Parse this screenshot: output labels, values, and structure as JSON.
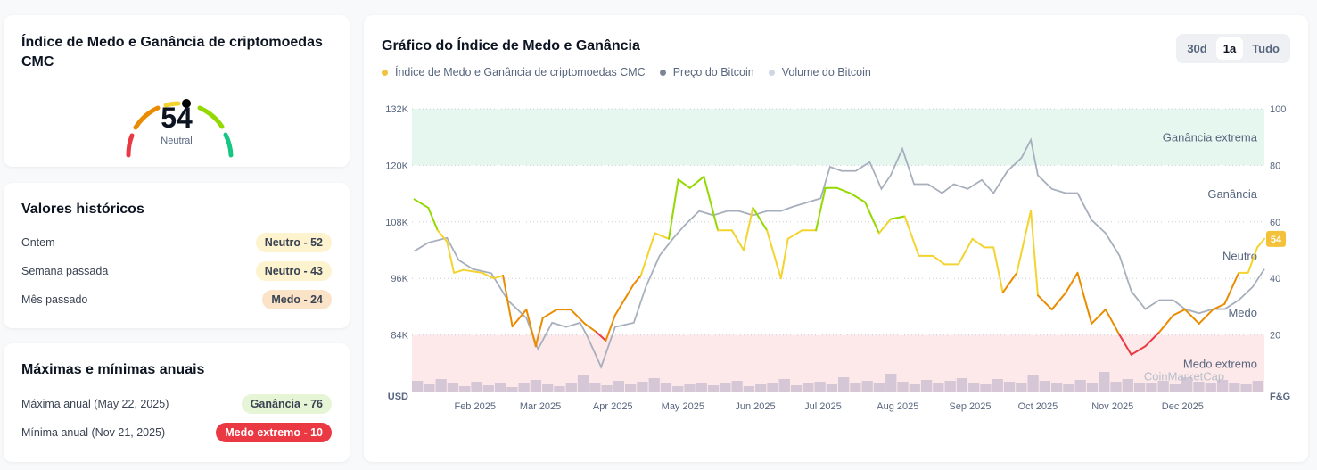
{
  "gauge": {
    "title": "Índice de Medo e Ganância de criptomoedas CMC",
    "value": "54",
    "label": "Neutral"
  },
  "historical": {
    "title": "Valores históricos",
    "rows": [
      {
        "label": "Ontem",
        "badge": "Neutro - 52",
        "color": "#fdf3cf"
      },
      {
        "label": "Semana passada",
        "badge": "Neutro - 43",
        "color": "#fdf3cf"
      },
      {
        "label": "Mês passado",
        "badge": "Medo - 24",
        "color": "#fbe3c8"
      }
    ]
  },
  "yearly": {
    "title": "Máximas e mínimas anuais",
    "rows": [
      {
        "label": "Máxima anual (May 22, 2025)",
        "badge": "Ganância - 76",
        "color": "#e5f5d5",
        "text": "#3a4352"
      },
      {
        "label": "Mínima anual (Nov 21, 2025)",
        "badge": "Medo extremo - 10",
        "color": "#ea3943",
        "text": "#ffffff"
      }
    ]
  },
  "chart_panel": {
    "title": "Gráfico do Índice de Medo e Ganância",
    "tabs": [
      "30d",
      "1a",
      "Tudo"
    ],
    "active_tab": "1a",
    "legend": [
      {
        "label": "Índice de Medo e Ganância de criptomoedas CMC",
        "color": "#f3c23a"
      },
      {
        "label": "Preço do Bitcoin",
        "color": "#7b8597"
      },
      {
        "label": "Volume do Bitcoin",
        "color": "#cfd6e4"
      }
    ],
    "watermark": "CoinMarketCap"
  },
  "chart_data": {
    "type": "line",
    "left_axis": {
      "label": "USD",
      "ticks": [
        "132K",
        "120K",
        "108K",
        "96K",
        "84K"
      ],
      "values": [
        132,
        120,
        108,
        96,
        84
      ],
      "range": [
        72,
        132
      ]
    },
    "right_axis": {
      "label": "F&G",
      "ticks": [
        "100",
        "80",
        "60",
        "40",
        "20"
      ],
      "range": [
        0,
        100
      ]
    },
    "x_ticks": [
      "Feb 2025",
      "Mar 2025",
      "Apr 2025",
      "May 2025",
      "Jun 2025",
      "Jul 2025",
      "Aug 2025",
      "Sep 2025",
      "Oct 2025",
      "Nov 2025",
      "Dec 2025"
    ],
    "x_tick_days": [
      27,
      55,
      86,
      116,
      147,
      176,
      208,
      239,
      268,
      300,
      330
    ],
    "x_range_days": [
      0,
      365
    ],
    "zones": [
      "Ganância extrema",
      "Ganância",
      "Neutro",
      "Medo",
      "Medo extremo"
    ],
    "current_label": "54",
    "fg": [
      [
        1,
        68
      ],
      [
        7,
        65
      ],
      [
        11,
        57
      ],
      [
        15,
        53
      ],
      [
        18,
        42
      ],
      [
        22,
        43
      ],
      [
        30,
        42
      ],
      [
        35,
        40
      ],
      [
        39,
        41
      ],
      [
        43,
        23
      ],
      [
        49,
        29
      ],
      [
        53,
        16
      ],
      [
        56,
        26
      ],
      [
        62,
        29
      ],
      [
        68,
        29
      ],
      [
        74,
        24
      ],
      [
        79,
        21
      ],
      [
        83,
        18
      ],
      [
        87,
        27
      ],
      [
        95,
        38
      ],
      [
        98,
        41
      ],
      [
        104,
        56
      ],
      [
        110,
        54
      ],
      [
        114,
        75
      ],
      [
        119,
        72
      ],
      [
        125,
        76
      ],
      [
        131,
        57
      ],
      [
        137,
        57
      ],
      [
        142,
        50
      ],
      [
        146,
        65
      ],
      [
        152,
        57
      ],
      [
        158,
        40
      ],
      [
        161,
        54
      ],
      [
        167,
        57
      ],
      [
        173,
        57
      ],
      [
        177,
        72
      ],
      [
        182,
        72
      ],
      [
        188,
        70
      ],
      [
        194,
        67
      ],
      [
        200,
        56
      ],
      [
        205,
        61
      ],
      [
        211,
        62
      ],
      [
        217,
        48
      ],
      [
        223,
        48
      ],
      [
        228,
        45
      ],
      [
        234,
        45
      ],
      [
        240,
        54
      ],
      [
        245,
        51
      ],
      [
        249,
        51
      ],
      [
        253,
        35
      ],
      [
        259,
        42
      ],
      [
        265,
        64
      ],
      [
        268,
        34
      ],
      [
        274,
        29
      ],
      [
        280,
        35
      ],
      [
        285,
        42
      ],
      [
        291,
        24
      ],
      [
        297,
        29
      ],
      [
        303,
        20
      ],
      [
        308,
        13
      ],
      [
        314,
        16
      ],
      [
        320,
        21
      ],
      [
        326,
        27
      ],
      [
        331,
        29
      ],
      [
        337,
        24
      ],
      [
        343,
        29
      ],
      [
        348,
        31
      ],
      [
        354,
        42
      ],
      [
        358,
        42
      ],
      [
        362,
        51
      ],
      [
        365,
        54
      ]
    ],
    "btc": [
      [
        1,
        101.8
      ],
      [
        7,
        103.6
      ],
      [
        15,
        104.6
      ],
      [
        20,
        99.9
      ],
      [
        26,
        98
      ],
      [
        34,
        97.1
      ],
      [
        41,
        91.4
      ],
      [
        49,
        87.6
      ],
      [
        54,
        81
      ],
      [
        60,
        86.6
      ],
      [
        66,
        85.7
      ],
      [
        72,
        86.6
      ],
      [
        75,
        83.8
      ],
      [
        81,
        77.2
      ],
      [
        87,
        85.7
      ],
      [
        95,
        86.6
      ],
      [
        100,
        94
      ],
      [
        106,
        100.8
      ],
      [
        112,
        104.6
      ],
      [
        117,
        107.4
      ],
      [
        123,
        110.3
      ],
      [
        129,
        109.4
      ],
      [
        135,
        110.3
      ],
      [
        140,
        110.3
      ],
      [
        146,
        109.4
      ],
      [
        152,
        110.3
      ],
      [
        158,
        110.3
      ],
      [
        163,
        111.2
      ],
      [
        169,
        112.1
      ],
      [
        175,
        113
      ],
      [
        179,
        119.7
      ],
      [
        184,
        118.8
      ],
      [
        190,
        118.8
      ],
      [
        196,
        120.7
      ],
      [
        201,
        115
      ],
      [
        205,
        117.9
      ],
      [
        210,
        123.5
      ],
      [
        215,
        116
      ],
      [
        221,
        116
      ],
      [
        227,
        114.1
      ],
      [
        232,
        116
      ],
      [
        238,
        115
      ],
      [
        244,
        116.9
      ],
      [
        249,
        114.1
      ],
      [
        255,
        118.8
      ],
      [
        261,
        121.6
      ],
      [
        265,
        125.4
      ],
      [
        268,
        117.9
      ],
      [
        274,
        115
      ],
      [
        280,
        114.1
      ],
      [
        285,
        114.1
      ],
      [
        291,
        108.4
      ],
      [
        297,
        105.6
      ],
      [
        303,
        100.8
      ],
      [
        308,
        93.3
      ],
      [
        314,
        89.5
      ],
      [
        320,
        91.4
      ],
      [
        326,
        91.4
      ],
      [
        331,
        89.5
      ],
      [
        337,
        88.6
      ],
      [
        343,
        89.5
      ],
      [
        348,
        89.5
      ],
      [
        354,
        91.4
      ],
      [
        360,
        94.2
      ],
      [
        365,
        98
      ]
    ],
    "volume": [
      12,
      8,
      14,
      9,
      6,
      11,
      7,
      10,
      5,
      9,
      13,
      8,
      6,
      10,
      18,
      9,
      7,
      12,
      8,
      11,
      15,
      9,
      6,
      8,
      10,
      7,
      9,
      12,
      6,
      8,
      10,
      14,
      7,
      9,
      11,
      8,
      16,
      10,
      12,
      9,
      20,
      11,
      8,
      13,
      9,
      12,
      15,
      10,
      8,
      14,
      11,
      9,
      18,
      12,
      10,
      8,
      13,
      9,
      22,
      11,
      14,
      10,
      9,
      12,
      8,
      16,
      11,
      9,
      13,
      10,
      8,
      12
    ]
  }
}
